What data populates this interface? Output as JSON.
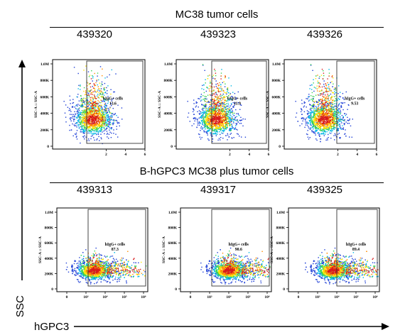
{
  "figure": {
    "top_group_title": "MC38 tumor cells",
    "bottom_group_title": "B-hGPC3 MC38 plus tumor cells",
    "y_axis_title": "SSC",
    "x_axis_title": "hGPC3"
  },
  "chart_data": [
    {
      "type": "scatter",
      "subtype": "flow-cytometry-density",
      "row": "top",
      "sample": "439320",
      "ylabel": "SSC-A :: SSC-A",
      "y_ticks": [
        "1.0M",
        "800K",
        "600K",
        "400K",
        "200K",
        "0"
      ],
      "x_ticks": [
        "2",
        "4",
        "6"
      ],
      "gate_label": "hIgG+ cells",
      "gate_value": "13.6",
      "cluster": {
        "cx": 0.42,
        "cy": 0.33,
        "sx": 0.18,
        "sy": 0.16,
        "tail_up": 1.0,
        "tail_right": 0.2,
        "count": 1500
      }
    },
    {
      "type": "scatter",
      "subtype": "flow-cytometry-density",
      "row": "top",
      "sample": "439323",
      "ylabel": "SSC-A :: SSC-A",
      "y_ticks": [
        "1.0M",
        "800K",
        "600K",
        "400K",
        "200K",
        "0"
      ],
      "x_ticks": [
        "2",
        "4",
        "6"
      ],
      "gate_label": "hIgG+ cells",
      "gate_value": "11.9",
      "cluster": {
        "cx": 0.42,
        "cy": 0.33,
        "sx": 0.18,
        "sy": 0.16,
        "tail_up": 1.0,
        "tail_right": 0.18,
        "count": 1500
      }
    },
    {
      "type": "scatter",
      "subtype": "flow-cytometry-density",
      "row": "top",
      "sample": "439326",
      "ylabel": "SSC-A :: SSC-A",
      "y_ticks": [
        "1.0M",
        "800K",
        "600K",
        "400K",
        "200K",
        "0"
      ],
      "x_ticks": [
        "2",
        "4",
        "6"
      ],
      "gate_label": "hIgG+ cells",
      "gate_value": "9.53",
      "cluster": {
        "cx": 0.42,
        "cy": 0.33,
        "sx": 0.18,
        "sy": 0.16,
        "tail_up": 1.0,
        "tail_right": 0.15,
        "count": 1500
      }
    },
    {
      "type": "scatter",
      "subtype": "flow-cytometry-density",
      "row": "bottom",
      "sample": "439313",
      "ylabel": "SSC-A :: SSC-A",
      "y_ticks": [
        "1.0M",
        "800K",
        "600K",
        "400K",
        "200K",
        "0"
      ],
      "x_ticks": [
        "0",
        "10³",
        "10⁴",
        "10⁵",
        "10⁶"
      ],
      "gate_label": "hIgG+ cells",
      "gate_value": "87.3",
      "cluster": {
        "cx": 0.4,
        "cy": 0.25,
        "sx": 0.18,
        "sy": 0.1,
        "tail_up": 0.5,
        "tail_right": 0.9,
        "count": 1800
      }
    },
    {
      "type": "scatter",
      "subtype": "flow-cytometry-density",
      "row": "bottom",
      "sample": "439317",
      "ylabel": "SSC-A :: SSC-A",
      "y_ticks": [
        "1.0M",
        "800K",
        "600K",
        "400K",
        "200K",
        "0"
      ],
      "x_ticks": [
        "0",
        "10³",
        "10⁴",
        "10⁵",
        "10⁶"
      ],
      "gate_label": "hIgG+ cells",
      "gate_value": "90.6",
      "cluster": {
        "cx": 0.52,
        "cy": 0.25,
        "sx": 0.18,
        "sy": 0.1,
        "tail_up": 0.5,
        "tail_right": 0.9,
        "count": 1800
      }
    },
    {
      "type": "scatter",
      "subtype": "flow-cytometry-density",
      "row": "bottom",
      "sample": "439325",
      "ylabel": "SSC-A :: SSC-A",
      "y_ticks": [
        "1.0M",
        "800K",
        "600K",
        "400K",
        "200K",
        "0"
      ],
      "x_ticks": [
        "0",
        "10³",
        "10⁴",
        "10⁵",
        "10⁶"
      ],
      "gate_label": "hIgG+ cells",
      "gate_value": "89.4",
      "cluster": {
        "cx": 0.48,
        "cy": 0.25,
        "sx": 0.18,
        "sy": 0.1,
        "tail_up": 0.5,
        "tail_right": 0.9,
        "count": 1800
      }
    }
  ]
}
